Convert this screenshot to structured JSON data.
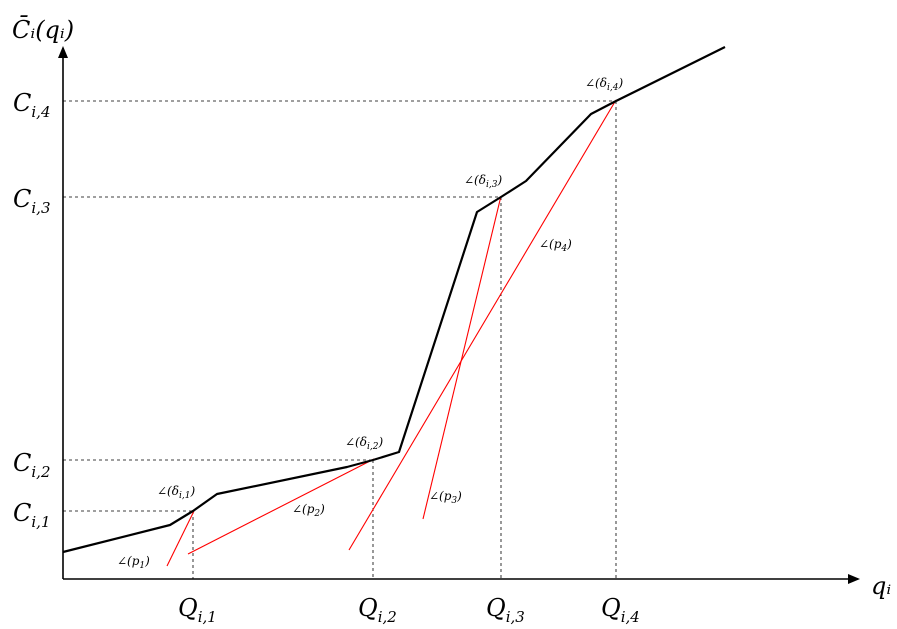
{
  "axes": {
    "y_label": "C̄ᵢ(qᵢ)",
    "x_label": "qᵢ"
  },
  "x_ticks": [
    "Q",
    "Q",
    "Q",
    "Q"
  ],
  "x_tick_subs": [
    "i,1",
    "i,2",
    "i,3",
    "i,4"
  ],
  "y_ticks": [
    "C",
    "C",
    "C",
    "C"
  ],
  "y_tick_subs": [
    "i,1",
    "i,2",
    "i,3",
    "i,4"
  ],
  "angle_labels": {
    "delta1": "∠(δ",
    "delta1_sub": "i,1",
    "delta1_end": ")",
    "delta2": "∠(δ",
    "delta2_sub": "i,2",
    "delta2_end": ")",
    "delta3": "∠(δ",
    "delta3_sub": "i,3",
    "delta3_end": ")",
    "delta4": "∠(δ",
    "delta4_sub": "i,4",
    "delta4_end": ")",
    "p1": "∠(p",
    "p1_sub": "1",
    "p1_end": ")",
    "p2": "∠(p",
    "p2_sub": "2",
    "p2_end": ")",
    "p3": "∠(p",
    "p3_sub": "3",
    "p3_end": ")",
    "p4": "∠(p",
    "p4_sub": "4",
    "p4_end": ")"
  },
  "colors": {
    "curve": "#000000",
    "tangent": "#ff0000",
    "guide": "#000000"
  }
}
